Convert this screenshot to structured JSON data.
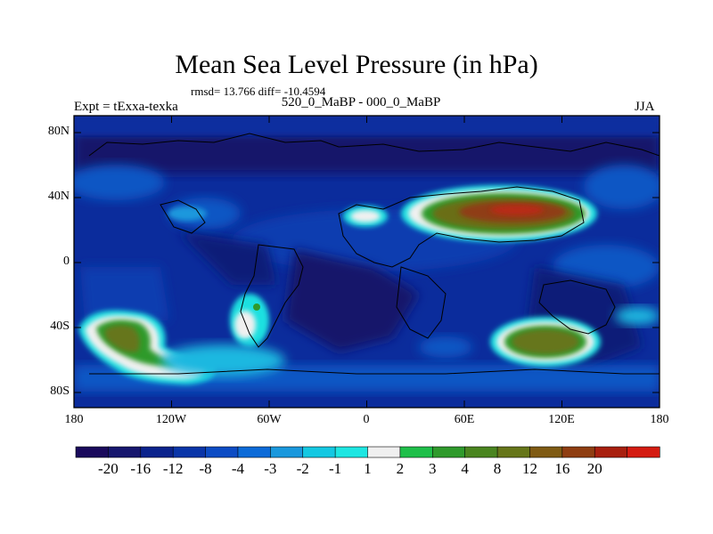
{
  "title": "Mean Sea Level Pressure (in hPa)",
  "stats_text": "rmsd= 13.766 diff= -10.4594",
  "left_label": "Expt = tExxa-texka",
  "center_label": "520_0_MaBP - 000_0_MaBP",
  "right_label": "JJA",
  "y_ticks": [
    "80N",
    "40N",
    "0",
    "40S",
    "80S"
  ],
  "x_ticks": [
    "180",
    "120W",
    "60W",
    "0",
    "60E",
    "120E",
    "180"
  ],
  "colorbar": {
    "colors": [
      "#1a0a5c",
      "#17176e",
      "#0b238c",
      "#0a35a8",
      "#0d4cc4",
      "#0d6bd8",
      "#1a98dd",
      "#14c8e2",
      "#1ee6e2",
      "#f0f0f0",
      "#1fbf4a",
      "#2f9a2c",
      "#4a8520",
      "#66761a",
      "#7f5b14",
      "#8f3e12",
      "#a8200f",
      "#d41c12"
    ],
    "labels": [
      "-20",
      "-16",
      "-12",
      "-8",
      "-4",
      "-3",
      "-2",
      "-1",
      "1",
      "2",
      "3",
      "4",
      "8",
      "12",
      "16",
      "20"
    ]
  },
  "legend_colors": {
    "ocean_background": "#0a2a9a",
    "coastline": "#000000"
  }
}
